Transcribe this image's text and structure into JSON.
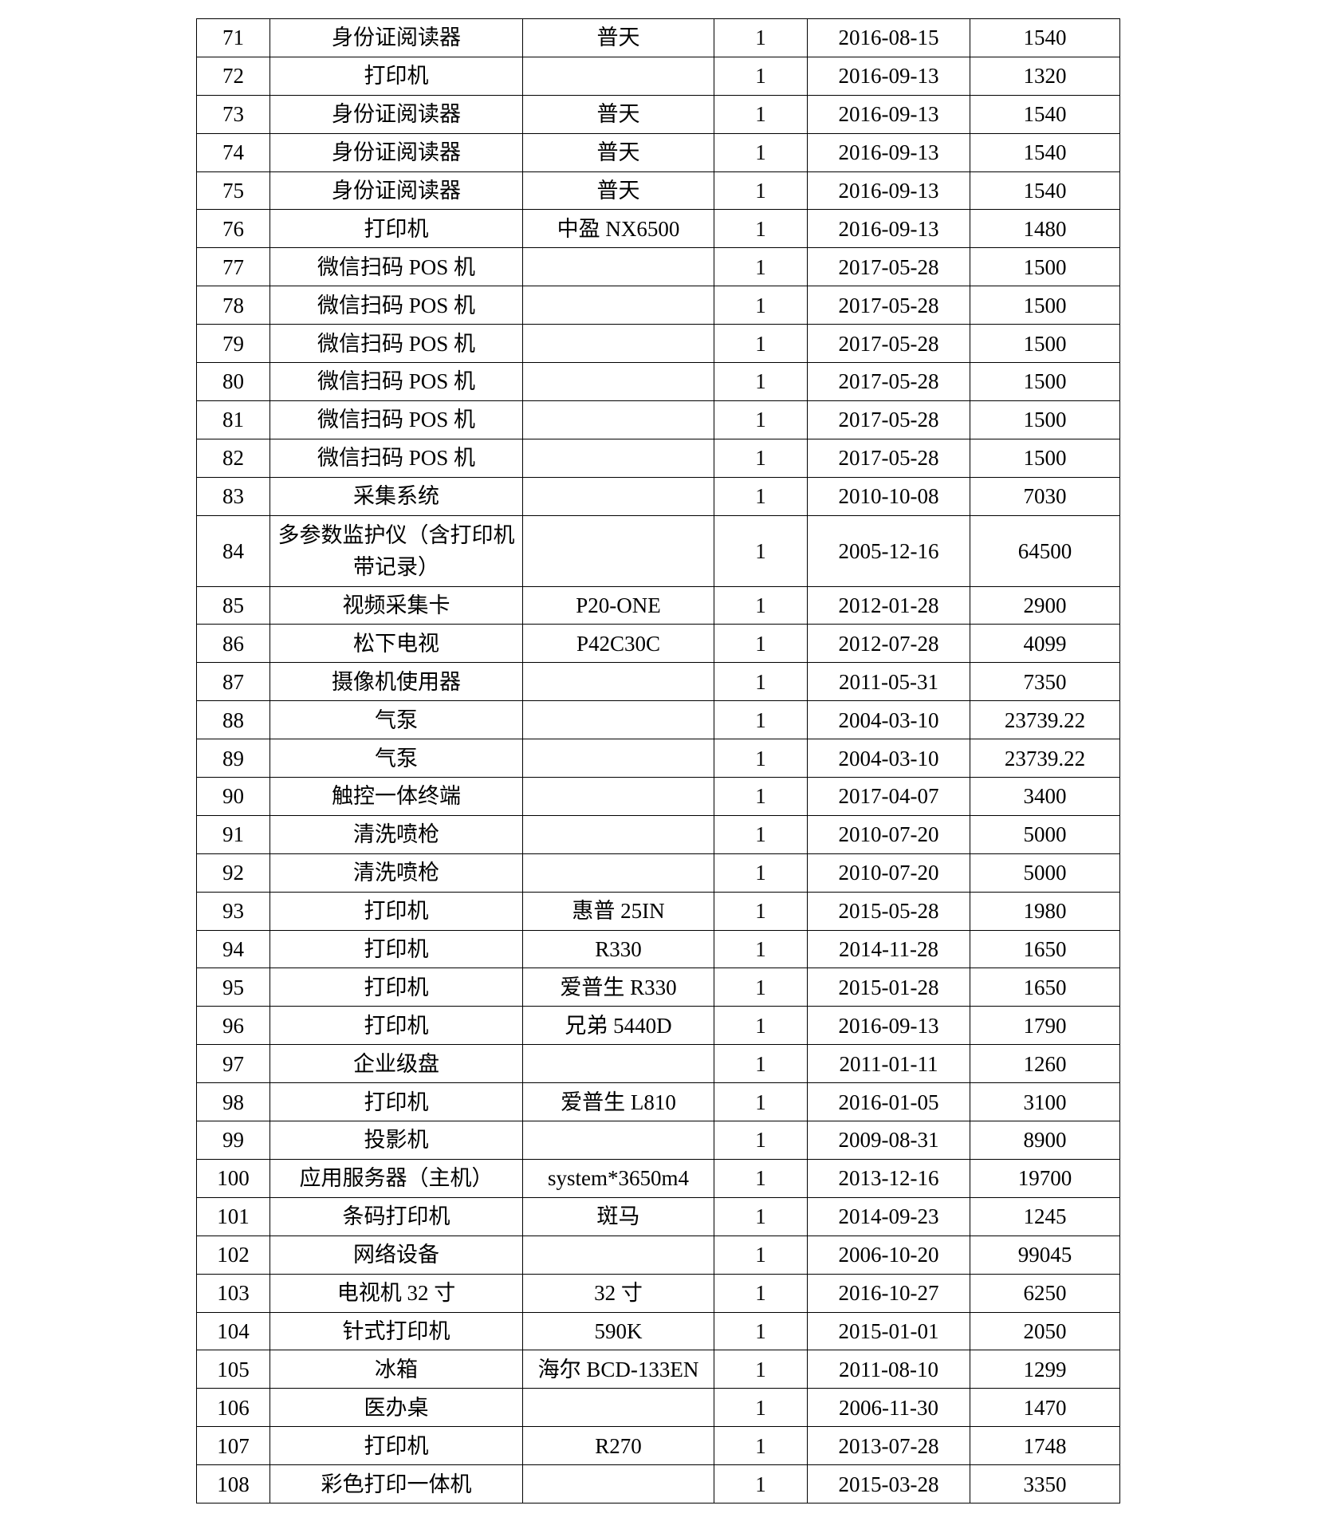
{
  "table": {
    "rows": [
      [
        "71",
        "身份证阅读器",
        "普天",
        "1",
        "2016-08-15",
        "1540"
      ],
      [
        "72",
        "打印机",
        "",
        "1",
        "2016-09-13",
        "1320"
      ],
      [
        "73",
        "身份证阅读器",
        "普天",
        "1",
        "2016-09-13",
        "1540"
      ],
      [
        "74",
        "身份证阅读器",
        "普天",
        "1",
        "2016-09-13",
        "1540"
      ],
      [
        "75",
        "身份证阅读器",
        "普天",
        "1",
        "2016-09-13",
        "1540"
      ],
      [
        "76",
        "打印机",
        "中盈 NX6500",
        "1",
        "2016-09-13",
        "1480"
      ],
      [
        "77",
        "微信扫码 POS 机",
        "",
        "1",
        "2017-05-28",
        "1500"
      ],
      [
        "78",
        "微信扫码 POS 机",
        "",
        "1",
        "2017-05-28",
        "1500"
      ],
      [
        "79",
        "微信扫码 POS 机",
        "",
        "1",
        "2017-05-28",
        "1500"
      ],
      [
        "80",
        "微信扫码 POS 机",
        "",
        "1",
        "2017-05-28",
        "1500"
      ],
      [
        "81",
        "微信扫码 POS 机",
        "",
        "1",
        "2017-05-28",
        "1500"
      ],
      [
        "82",
        "微信扫码 POS 机",
        "",
        "1",
        "2017-05-28",
        "1500"
      ],
      [
        "83",
        "采集系统",
        "",
        "1",
        "2010-10-08",
        "7030"
      ],
      [
        "84",
        "多参数监护仪（含打印机 带记录）",
        "",
        "1",
        "2005-12-16",
        "64500"
      ],
      [
        "85",
        "视频采集卡",
        "P20-ONE",
        "1",
        "2012-01-28",
        "2900"
      ],
      [
        "86",
        "松下电视",
        "P42C30C",
        "1",
        "2012-07-28",
        "4099"
      ],
      [
        "87",
        "摄像机使用器",
        "",
        "1",
        "2011-05-31",
        "7350"
      ],
      [
        "88",
        "气泵",
        "",
        "1",
        "2004-03-10",
        "23739.22"
      ],
      [
        "89",
        "气泵",
        "",
        "1",
        "2004-03-10",
        "23739.22"
      ],
      [
        "90",
        "触控一体终端",
        "",
        "1",
        "2017-04-07",
        "3400"
      ],
      [
        "91",
        "清洗喷枪",
        "",
        "1",
        "2010-07-20",
        "5000"
      ],
      [
        "92",
        "清洗喷枪",
        "",
        "1",
        "2010-07-20",
        "5000"
      ],
      [
        "93",
        "打印机",
        "惠普 25IN",
        "1",
        "2015-05-28",
        "1980"
      ],
      [
        "94",
        "打印机",
        "R330",
        "1",
        "2014-11-28",
        "1650"
      ],
      [
        "95",
        "打印机",
        "爱普生 R330",
        "1",
        "2015-01-28",
        "1650"
      ],
      [
        "96",
        "打印机",
        "兄弟 5440D",
        "1",
        "2016-09-13",
        "1790"
      ],
      [
        "97",
        "企业级盘",
        "",
        "1",
        "2011-01-11",
        "1260"
      ],
      [
        "98",
        "打印机",
        "爱普生 L810",
        "1",
        "2016-01-05",
        "3100"
      ],
      [
        "99",
        "投影机",
        "",
        "1",
        "2009-08-31",
        "8900"
      ],
      [
        "100",
        "应用服务器（主机）",
        "system*3650m4",
        "1",
        "2013-12-16",
        "19700"
      ],
      [
        "101",
        "条码打印机",
        "斑马",
        "1",
        "2014-09-23",
        "1245"
      ],
      [
        "102",
        "网络设备",
        "",
        "1",
        "2006-10-20",
        "99045"
      ],
      [
        "103",
        "电视机 32 寸",
        "32 寸",
        "1",
        "2016-10-27",
        "6250"
      ],
      [
        "104",
        "针式打印机",
        "590K",
        "1",
        "2015-01-01",
        "2050"
      ],
      [
        "105",
        "冰箱",
        "海尔 BCD-133EN",
        "1",
        "2011-08-10",
        "1299"
      ],
      [
        "106",
        "医办桌",
        "",
        "1",
        "2006-11-30",
        "1470"
      ],
      [
        "107",
        "打印机",
        "R270",
        "1",
        "2013-07-28",
        "1748"
      ],
      [
        "108",
        "彩色打印一体机",
        "",
        "1",
        "2015-03-28",
        "3350"
      ]
    ]
  }
}
